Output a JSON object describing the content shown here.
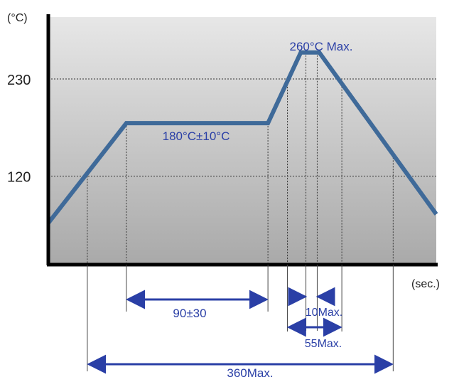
{
  "chart_data": {
    "type": "line",
    "title": "",
    "ylabel": "(°C)",
    "xlabel": "(sec.)",
    "yticks": [
      230,
      120
    ],
    "ylim": [
      20,
      300
    ],
    "xlim": [
      0,
      378
    ],
    "grid": false,
    "colors": {
      "profile": "#3f6a99",
      "annotation": "#2a3fa6",
      "plot_top": "#e7e7e7",
      "plot_bottom": "#a9a9a9"
    },
    "series": [
      {
        "values": [
          {
            "x": 0,
            "y": 67
          },
          {
            "x": 76,
            "y": 180
          },
          {
            "x": 214,
            "y": 180
          },
          {
            "x": 246,
            "y": 260
          },
          {
            "x": 264,
            "y": 260
          },
          {
            "x": 378,
            "y": 77
          }
        ]
      }
    ],
    "guides": {
      "horizontal": [
        230,
        120
      ],
      "vertical": [
        38,
        76,
        214,
        233,
        251,
        262,
        286,
        336
      ]
    },
    "annotations": {
      "peak": "260°C Max.",
      "soak": "180°C±10°C",
      "soak_time": "90±30",
      "peak_time": "10Max.",
      "above230_time": "55Max.",
      "total_time": "360Max."
    },
    "dimensions": {
      "soak_time": [
        76,
        214
      ],
      "peak_time": [
        251,
        262
      ],
      "above230_time": [
        233,
        286
      ],
      "total_time": [
        38,
        336
      ]
    }
  }
}
